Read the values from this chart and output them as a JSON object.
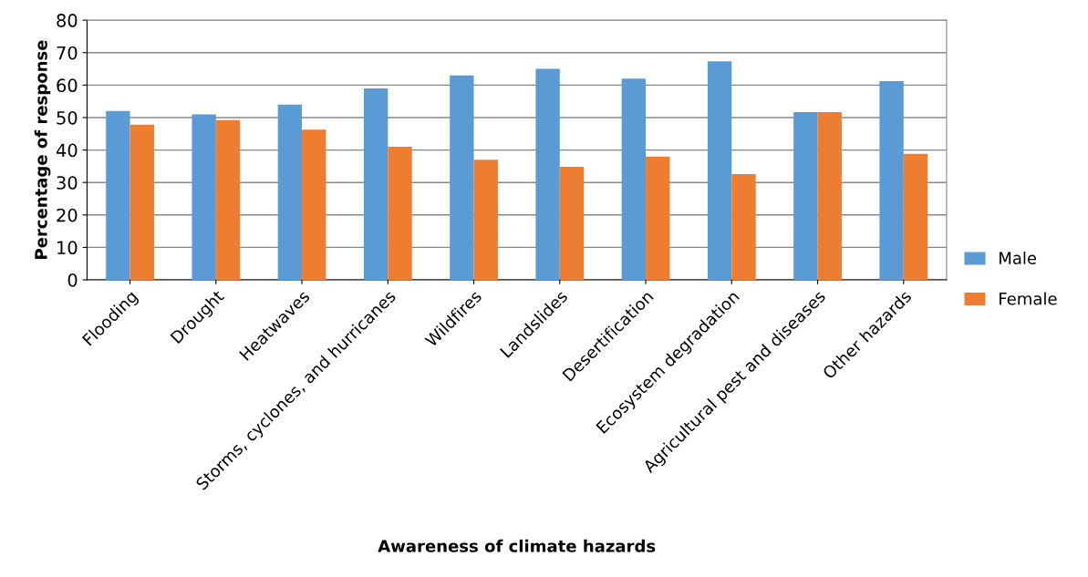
{
  "chart_data": {
    "type": "bar",
    "xlabel": "Awareness of climate hazards",
    "ylabel": "Percentage of response",
    "categories": [
      "Flooding",
      "Drought",
      "Heatwaves",
      "Storms, cyclones, and hurricanes",
      "Wildfires",
      "Landslides",
      "Desertification",
      "Ecosystem degradation",
      "Agricultural pest and diseases",
      "Other hazards"
    ],
    "series": [
      {
        "name": "Male",
        "color": "#5b9bd5",
        "values": [
          52,
          51,
          54,
          59,
          63,
          65,
          62,
          67.3,
          51.7,
          61.2
        ]
      },
      {
        "name": "Female",
        "color": "#ed7d31",
        "values": [
          47.8,
          49.2,
          46.3,
          41,
          37,
          34.8,
          38,
          32.6,
          51.7,
          38.8
        ]
      }
    ],
    "ylim": [
      0,
      80
    ],
    "yticks": [
      0,
      10,
      20,
      30,
      40,
      50,
      60,
      70,
      80
    ],
    "grid": "y",
    "legend": "right"
  }
}
